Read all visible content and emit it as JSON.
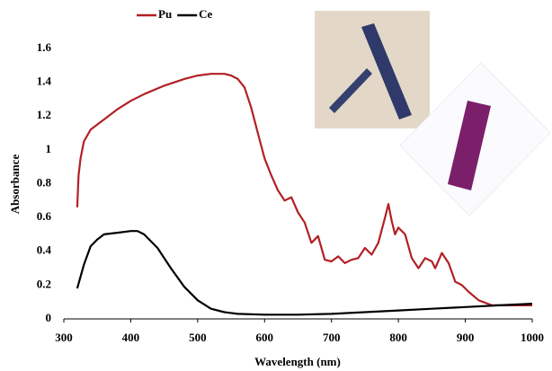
{
  "chart_data": {
    "type": "line",
    "x_label": "Wavelength (nm)",
    "y_label": "Absorbance",
    "xlim": [
      300,
      1000
    ],
    "xticks": [
      300,
      400,
      500,
      600,
      700,
      800,
      900,
      1000
    ],
    "ylim": [
      0,
      1.6
    ],
    "yticks": [
      0,
      0.2,
      0.4,
      0.6,
      0.8,
      1,
      1.2,
      1.4,
      1.6
    ],
    "grid": false,
    "legend": "top",
    "series": [
      {
        "name": "Pu",
        "color": "#b22025",
        "x": [
          320,
          322,
          325,
          330,
          340,
          360,
          380,
          400,
          420,
          450,
          480,
          500,
          520,
          540,
          550,
          560,
          570,
          580,
          590,
          600,
          610,
          620,
          630,
          640,
          650,
          660,
          670,
          680,
          690,
          700,
          710,
          720,
          730,
          740,
          750,
          760,
          770,
          780,
          785,
          790,
          795,
          800,
          810,
          820,
          830,
          840,
          850,
          855,
          865,
          875,
          885,
          895,
          905,
          920,
          940,
          960,
          980,
          1000
        ],
        "values": [
          0.66,
          0.85,
          0.95,
          1.05,
          1.12,
          1.18,
          1.24,
          1.29,
          1.33,
          1.38,
          1.42,
          1.44,
          1.45,
          1.45,
          1.44,
          1.42,
          1.37,
          1.25,
          1.1,
          0.95,
          0.85,
          0.76,
          0.7,
          0.72,
          0.63,
          0.57,
          0.45,
          0.49,
          0.35,
          0.34,
          0.37,
          0.33,
          0.35,
          0.36,
          0.42,
          0.38,
          0.45,
          0.6,
          0.68,
          0.58,
          0.5,
          0.54,
          0.5,
          0.36,
          0.3,
          0.36,
          0.34,
          0.3,
          0.39,
          0.33,
          0.22,
          0.2,
          0.16,
          0.11,
          0.08,
          0.08,
          0.08,
          0.08
        ]
      },
      {
        "name": "Ce",
        "color": "#000000",
        "x": [
          320,
          330,
          340,
          350,
          360,
          380,
          400,
          410,
          420,
          440,
          460,
          480,
          500,
          520,
          540,
          560,
          600,
          650,
          700,
          750,
          800,
          850,
          900,
          950,
          1000
        ],
        "values": [
          0.18,
          0.32,
          0.43,
          0.47,
          0.5,
          0.51,
          0.52,
          0.52,
          0.5,
          0.42,
          0.3,
          0.19,
          0.11,
          0.06,
          0.04,
          0.03,
          0.025,
          0.025,
          0.03,
          0.04,
          0.05,
          0.06,
          0.07,
          0.08,
          0.09
        ]
      }
    ]
  }
}
